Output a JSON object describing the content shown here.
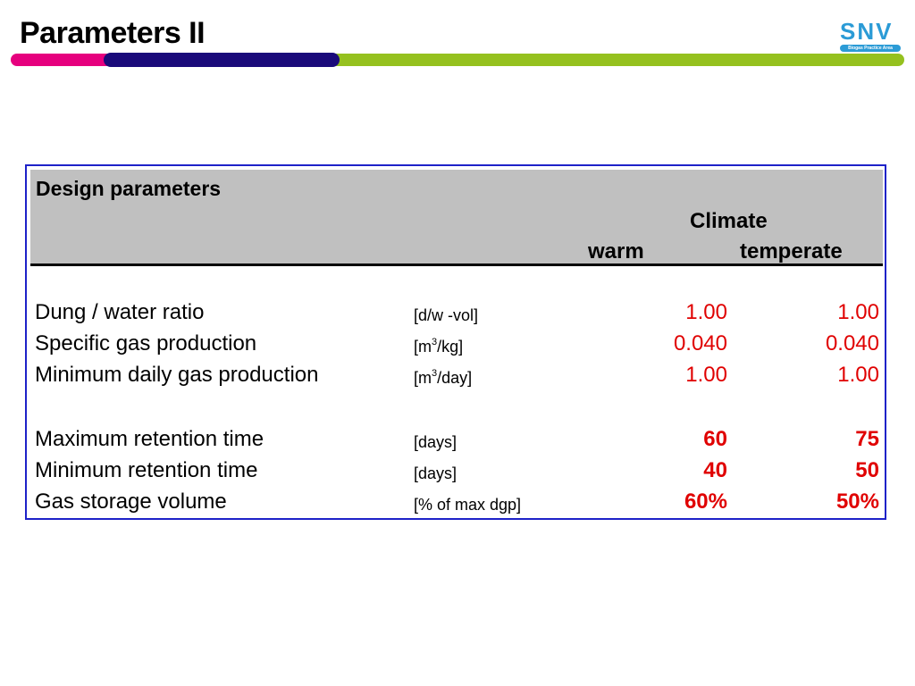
{
  "title": "Parameters II",
  "logo": {
    "text": "SNV",
    "subtitle": "Biogas Practice Area"
  },
  "colors": {
    "pink": "#e6007e",
    "navy": "#1a0a7a",
    "green": "#95c11f",
    "panel_border": "#1e22c8",
    "value_red": "#e00000"
  },
  "table": {
    "header": {
      "title": "Design parameters",
      "group": "Climate",
      "col1": "warm",
      "col2": "temperate"
    },
    "rows": [
      {
        "label": "Dung / water ratio",
        "unit_pre": "[d/w -vol]",
        "unit_sup": "",
        "unit_post": "",
        "warm": "1.00",
        "temperate": "1.00"
      },
      {
        "label": "Specific gas production",
        "unit_pre": "[m",
        "unit_sup": "3",
        "unit_post": "/kg]",
        "warm": "0.040",
        "temperate": "0.040"
      },
      {
        "label": "Minimum daily gas production",
        "unit_pre": "[m",
        "unit_sup": "3",
        "unit_post": "/day]",
        "warm": "1.00",
        "temperate": "1.00"
      },
      {
        "label": "Maximum retention time",
        "unit_pre": "[days]",
        "unit_sup": "",
        "unit_post": "",
        "warm": "60",
        "temperate": "75"
      },
      {
        "label": "Minimum retention time",
        "unit_pre": "[days]",
        "unit_sup": "",
        "unit_post": "",
        "warm": "40",
        "temperate": "50"
      },
      {
        "label": "Gas storage volume",
        "unit_pre": "[% of max dgp]",
        "unit_sup": "",
        "unit_post": "",
        "warm": "60%",
        "temperate": "50%"
      }
    ]
  }
}
